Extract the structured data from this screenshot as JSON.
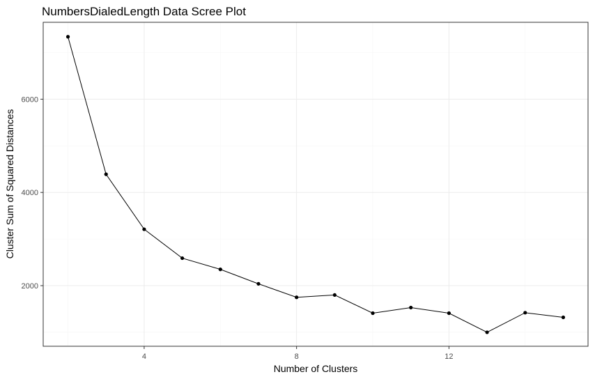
{
  "chart_data": {
    "type": "line",
    "title": "NumbersDialedLength Data Scree Plot",
    "xlabel": "Number of Clusters",
    "ylabel": "Cluster Sum of Squared Distances",
    "x": [
      2,
      3,
      4,
      5,
      6,
      7,
      8,
      9,
      10,
      11,
      12,
      13,
      14,
      15
    ],
    "series": [
      {
        "values": [
          7340,
          4390,
          3210,
          2590,
          2350,
          2040,
          1750,
          1800,
          1410,
          1530,
          1410,
          1000,
          1420,
          1320
        ]
      }
    ],
    "xlim": [
      1.35,
      15.65
    ],
    "ylim": [
      700,
      7650
    ],
    "x_ticks": [
      4,
      8,
      12
    ],
    "y_ticks": [
      2000,
      4000,
      6000
    ],
    "x_tick_labels": [
      "4",
      "8",
      "12"
    ],
    "y_tick_labels": [
      "2000",
      "4000",
      "6000"
    ],
    "x_minor_ticks": [
      2,
      6,
      10,
      14
    ],
    "y_minor_ticks": [
      1000,
      3000,
      5000,
      7000
    ],
    "grid": true,
    "legend": "none",
    "colors": {
      "line": "#000000",
      "point": "#000000",
      "grid": "#ebebeb",
      "border": "#333333"
    }
  }
}
